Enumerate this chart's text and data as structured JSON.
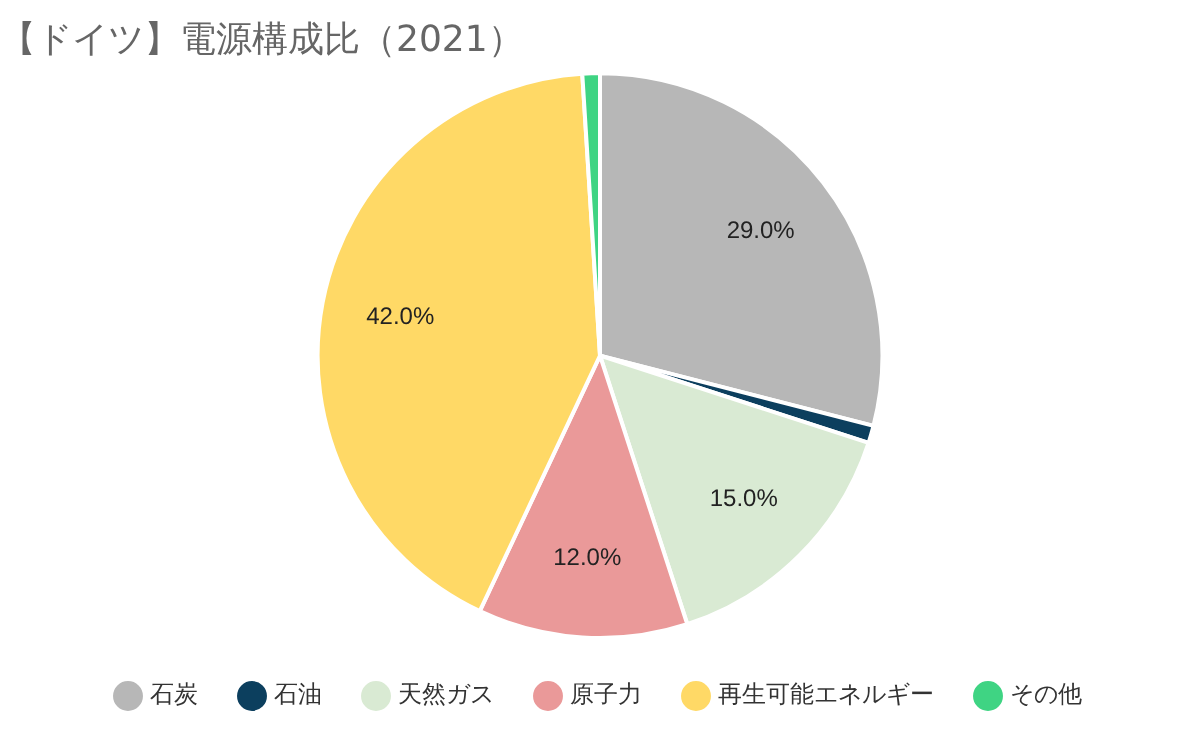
{
  "chart_data": {
    "type": "pie",
    "title": "【ドイツ】電源構成比（2021）",
    "categories": [
      "石炭",
      "石油",
      "天然ガス",
      "原子力",
      "再生可能エネルギー",
      "その他"
    ],
    "values": [
      29.0,
      1.0,
      15.0,
      12.0,
      42.0,
      1.0
    ],
    "value_labels": [
      "29.0%",
      null,
      "15.0%",
      "12.0%",
      "42.0%",
      null
    ],
    "colors": [
      "#b7b7b7",
      "#0c3f5e",
      "#d9ead3",
      "#ea9999",
      "#ffd966",
      "#3fd483"
    ],
    "legend": "bottom"
  }
}
